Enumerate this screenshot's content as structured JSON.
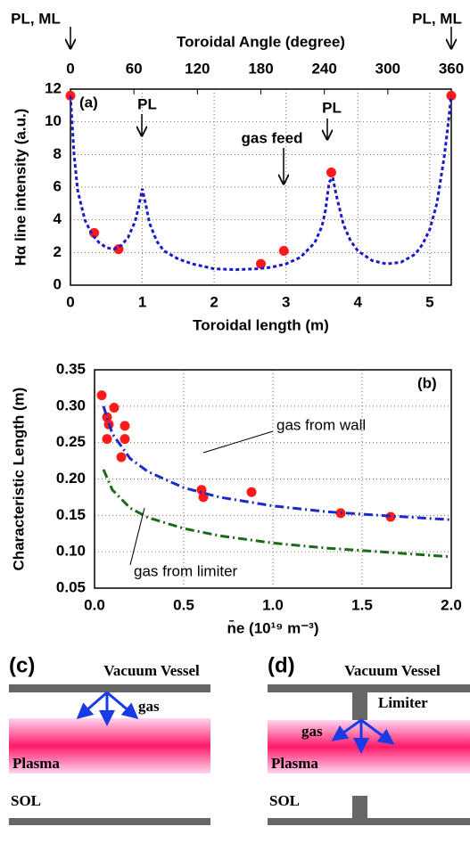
{
  "chart_data": [
    {
      "type": "line",
      "panel": "(a)",
      "xlabel": "Toroidal length (m)",
      "ylabel": "Hα line intensity (a.u.)",
      "x2label": "Toroidal Angle (degree)",
      "xlim": [
        0,
        5.3
      ],
      "xticks": [
        0,
        1,
        2,
        3,
        4,
        5
      ],
      "x2lim": [
        0,
        360
      ],
      "x2ticks": [
        0,
        60,
        120,
        180,
        240,
        300,
        360
      ],
      "ylim": [
        0,
        12
      ],
      "yticks": [
        0,
        2,
        4,
        6,
        8,
        10,
        12
      ],
      "grid": true,
      "annotations": [
        "PL, ML",
        "PL, ML",
        "PL",
        "PL",
        "gas feed"
      ],
      "series": [
        {
          "style": "markers",
          "color": "#ff1a1a",
          "x": [
            0,
            0.33,
            0.67,
            2.65,
            2.97,
            3.63,
            5.3
          ],
          "values": [
            11.6,
            3.2,
            2.2,
            1.3,
            2.1,
            6.9,
            11.6
          ]
        },
        {
          "style": "dash",
          "color": "#1a1acc",
          "x": [
            0,
            0.05,
            0.1,
            0.2,
            0.3,
            0.4,
            0.5,
            0.6,
            0.7,
            0.8,
            0.9,
            0.95,
            1.0,
            1.05,
            1.1,
            1.2,
            1.3,
            1.5,
            1.7,
            2.0,
            2.3,
            2.6,
            2.8,
            3.0,
            3.2,
            3.4,
            3.5,
            3.55,
            3.6,
            3.65,
            3.7,
            3.8,
            3.9,
            4.0,
            4.2,
            4.4,
            4.6,
            4.8,
            4.9,
            5.0,
            5.1,
            5.2,
            5.25,
            5.3
          ],
          "values": [
            11.6,
            8.0,
            5.8,
            4.0,
            3.1,
            2.6,
            2.3,
            2.2,
            2.4,
            2.9,
            3.9,
            4.8,
            5.9,
            4.9,
            3.8,
            2.7,
            2.1,
            1.6,
            1.3,
            1.0,
            0.95,
            1.0,
            1.1,
            1.3,
            1.7,
            2.6,
            3.6,
            4.6,
            6.3,
            6.6,
            5.5,
            3.7,
            2.7,
            2.1,
            1.5,
            1.3,
            1.4,
            1.9,
            2.5,
            3.4,
            5.0,
            7.8,
            9.6,
            11.6
          ]
        }
      ]
    },
    {
      "type": "line",
      "panel": "(b)",
      "xlabel": "n̄e (10¹⁹ m⁻³)",
      "ylabel": "Characteristic Length (m)",
      "xlim": [
        0,
        2.0
      ],
      "xticks": [
        {
          "value": 0,
          "label": "0.0"
        },
        0.5,
        {
          "value": 1,
          "label": "1.0"
        },
        1.5,
        {
          "value": 2,
          "label": "2.0"
        }
      ],
      "ylim": [
        0.05,
        0.35
      ],
      "yticks": [
        0.05,
        {
          "value": 0.1,
          "label": "0.10"
        },
        0.15,
        {
          "value": 0.2,
          "label": "0.20"
        },
        0.25,
        {
          "value": 0.3,
          "label": "0.30"
        },
        0.35
      ],
      "grid": true,
      "series": [
        {
          "style": "markers",
          "color": "#ff1a1a",
          "x": [
            0.04,
            0.07,
            0.08,
            0.07,
            0.11,
            0.17,
            0.17,
            0.15,
            0.6,
            0.61,
            0.88,
            1.38,
            1.66
          ],
          "values": [
            0.315,
            0.285,
            0.275,
            0.255,
            0.298,
            0.273,
            0.255,
            0.23,
            0.185,
            0.175,
            0.182,
            0.153,
            0.148
          ]
        },
        {
          "name": "gas from wall",
          "style": "dashdot",
          "color": "#1a2acc",
          "x": [
            0.05,
            0.1,
            0.2,
            0.3,
            0.5,
            0.7,
            1.0,
            1.3,
            1.6,
            2.0
          ],
          "values": [
            0.3,
            0.262,
            0.228,
            0.21,
            0.188,
            0.175,
            0.163,
            0.155,
            0.15,
            0.144
          ]
        },
        {
          "name": "gas from limiter",
          "style": "dashdot",
          "color": "#1a6a1a",
          "x": [
            0.05,
            0.1,
            0.2,
            0.3,
            0.5,
            0.7,
            1.0,
            1.3,
            1.6,
            2.0
          ],
          "values": [
            0.213,
            0.185,
            0.16,
            0.147,
            0.132,
            0.122,
            0.112,
            0.105,
            0.1,
            0.093
          ]
        }
      ]
    }
  ],
  "diagrams": [
    {
      "label": "(c)",
      "vessel": "Vacuum Vessel",
      "gas": "gas",
      "plasma": "Plasma",
      "sol": "SOL"
    },
    {
      "label": "(d)",
      "vessel": "Vacuum Vessel",
      "limiter": "Limiter",
      "gas": "gas",
      "plasma": "Plasma",
      "sol": "SOL"
    }
  ]
}
